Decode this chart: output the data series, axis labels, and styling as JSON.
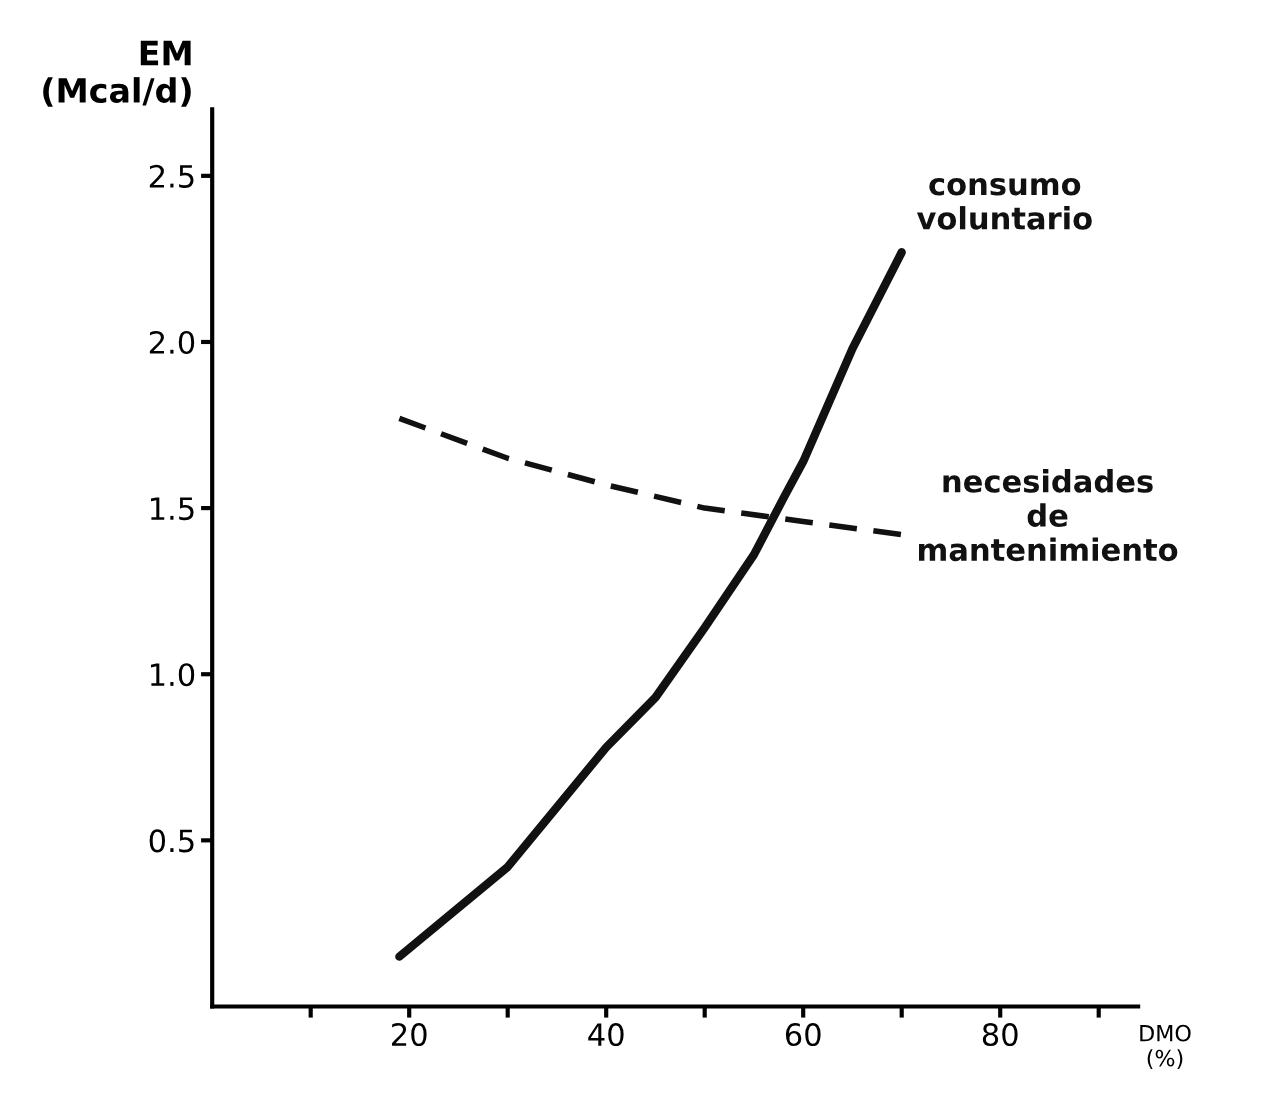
{
  "chart_data": {
    "type": "line",
    "ylabel": "EM\n(Mcal/d)",
    "xlabel": "DMO\n(%)",
    "xlim": [
      0,
      94
    ],
    "ylim": [
      0,
      2.7
    ],
    "xticks": [
      {
        "value": 10,
        "label": null
      },
      20,
      {
        "value": 30,
        "label": null
      },
      40,
      {
        "value": 50,
        "label": null
      },
      60,
      {
        "value": 70,
        "label": null
      },
      80,
      {
        "value": 90,
        "label": null
      }
    ],
    "yticks": [
      {
        "value": 0.5,
        "label": "0.5"
      },
      {
        "value": 1.0,
        "label": "1.0"
      },
      {
        "value": 1.5,
        "label": "1.5"
      },
      {
        "value": 2.0,
        "label": "2.0"
      },
      {
        "value": 2.5,
        "label": "2.5"
      }
    ],
    "grid": false,
    "legend": false,
    "series": [
      {
        "name": "consumo\nvoluntario",
        "color": "#111111",
        "line_style": "solid",
        "x": [
          19,
          30,
          40,
          45,
          50,
          55,
          58,
          60,
          65,
          70
        ],
        "values": [
          0.15,
          0.42,
          0.78,
          0.93,
          1.14,
          1.36,
          1.53,
          1.64,
          1.98,
          2.27
        ]
      },
      {
        "name": "necesidades\nde\nmantenimiento",
        "color": "#111111",
        "line_style": "dashed",
        "x": [
          19,
          30,
          40,
          50,
          60,
          70
        ],
        "values": [
          1.77,
          1.65,
          1.57,
          1.5,
          1.46,
          1.42
        ]
      }
    ]
  }
}
